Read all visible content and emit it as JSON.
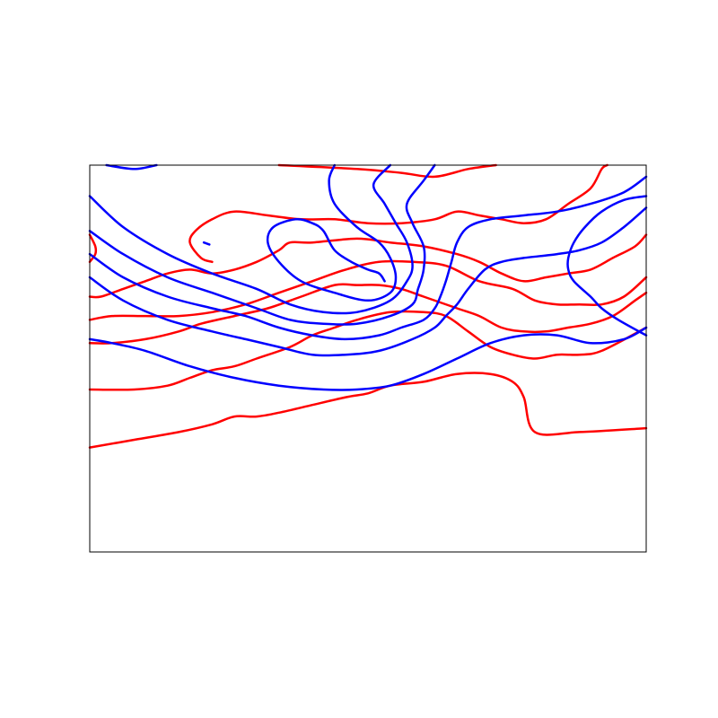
{
  "chart_data": {
    "type": "line",
    "title": "",
    "xlabel": "",
    "ylabel": "",
    "xlim": [
      0,
      100
    ],
    "ylim": [
      0,
      100
    ],
    "grid": false,
    "legend": "none",
    "series": [
      {
        "color": "#ff0000",
        "points": [
          [
            0,
            27
          ],
          [
            8,
            29
          ],
          [
            16,
            31
          ],
          [
            22,
            33
          ],
          [
            26,
            35
          ],
          [
            30,
            35
          ],
          [
            34,
            36
          ],
          [
            40,
            38
          ],
          [
            46,
            40
          ],
          [
            50,
            41
          ],
          [
            54,
            43
          ],
          [
            60,
            44
          ],
          [
            66,
            46
          ],
          [
            72,
            46
          ],
          [
            76,
            44
          ],
          [
            78,
            40
          ],
          [
            80,
            31
          ],
          [
            88,
            31
          ],
          [
            100,
            32
          ]
        ]
      },
      {
        "color": "#ff0000",
        "points": [
          [
            0,
            42
          ],
          [
            8,
            42
          ],
          [
            14,
            43
          ],
          [
            18,
            45
          ],
          [
            22,
            47
          ],
          [
            26,
            48
          ],
          [
            30,
            50
          ],
          [
            36,
            53
          ],
          [
            40,
            56
          ],
          [
            44,
            58
          ],
          [
            48,
            60
          ],
          [
            54,
            62
          ],
          [
            60,
            62
          ],
          [
            64,
            61
          ],
          [
            68,
            57
          ],
          [
            72,
            53
          ],
          [
            76,
            51
          ],
          [
            80,
            50
          ],
          [
            84,
            51
          ],
          [
            88,
            51
          ],
          [
            92,
            52
          ],
          [
            100,
            58
          ]
        ]
      },
      {
        "color": "#ff0000",
        "points": [
          [
            0,
            54
          ],
          [
            4,
            54
          ],
          [
            10,
            55
          ],
          [
            16,
            57
          ],
          [
            20,
            59
          ],
          [
            26,
            61
          ],
          [
            32,
            63
          ],
          [
            38,
            66
          ],
          [
            44,
            69
          ],
          [
            48,
            69
          ],
          [
            52,
            69
          ],
          [
            56,
            68
          ],
          [
            60,
            66
          ],
          [
            66,
            63
          ],
          [
            70,
            61
          ],
          [
            74,
            58
          ],
          [
            78,
            57
          ],
          [
            82,
            57
          ],
          [
            86,
            58
          ],
          [
            90,
            59
          ],
          [
            94,
            61
          ],
          [
            98,
            65
          ],
          [
            100,
            67
          ]
        ]
      },
      {
        "color": "#ff0000",
        "points": [
          [
            0,
            60
          ],
          [
            4,
            61
          ],
          [
            10,
            61
          ],
          [
            16,
            61
          ],
          [
            22,
            62
          ],
          [
            28,
            64
          ],
          [
            34,
            67
          ],
          [
            40,
            70
          ],
          [
            46,
            73
          ],
          [
            52,
            75
          ],
          [
            58,
            75
          ],
          [
            64,
            74
          ],
          [
            70,
            70
          ],
          [
            76,
            68
          ],
          [
            80,
            65
          ],
          [
            84,
            64
          ],
          [
            88,
            64
          ],
          [
            92,
            64
          ],
          [
            96,
            66
          ],
          [
            100,
            71
          ]
        ]
      },
      {
        "color": "#ff0000",
        "points": [
          [
            0,
            66
          ],
          [
            2,
            66
          ],
          [
            6,
            68
          ],
          [
            10,
            70
          ],
          [
            14,
            72
          ],
          [
            18,
            73
          ],
          [
            22,
            72
          ],
          [
            26,
            73
          ],
          [
            30,
            75
          ],
          [
            34,
            78
          ],
          [
            36,
            80
          ],
          [
            40,
            80
          ],
          [
            48,
            81
          ],
          [
            54,
            80
          ],
          [
            60,
            79
          ],
          [
            66,
            77
          ],
          [
            70,
            75
          ],
          [
            74,
            72
          ],
          [
            78,
            70
          ],
          [
            82,
            71
          ],
          [
            86,
            72
          ],
          [
            90,
            73
          ],
          [
            94,
            76
          ],
          [
            98,
            79
          ],
          [
            100,
            82
          ]
        ]
      },
      {
        "color": "#ff0000",
        "points": [
          [
            0,
            75
          ],
          [
            1,
            77
          ],
          [
            1,
            79
          ],
          [
            0,
            82
          ]
        ]
      },
      {
        "color": "#ff0000",
        "points": [
          [
            22,
            75
          ],
          [
            20,
            76
          ],
          [
            18,
            80
          ],
          [
            19,
            83
          ],
          [
            22,
            86
          ],
          [
            26,
            88
          ],
          [
            32,
            87
          ],
          [
            38,
            86
          ],
          [
            44,
            86
          ],
          [
            50,
            85
          ],
          [
            56,
            85
          ],
          [
            62,
            86
          ],
          [
            66,
            88
          ],
          [
            70,
            87
          ],
          [
            74,
            86
          ],
          [
            78,
            85
          ],
          [
            82,
            86
          ],
          [
            86,
            90
          ],
          [
            90,
            94
          ],
          [
            92,
            99
          ],
          [
            93,
            100
          ]
        ]
      },
      {
        "color": "#ff0000",
        "points": [
          [
            34,
            100
          ],
          [
            48,
            99
          ],
          [
            56,
            98
          ],
          [
            62,
            97
          ],
          [
            68,
            99
          ],
          [
            73,
            100
          ]
        ]
      },
      {
        "color": "#0000ff",
        "points": [
          [
            0,
            55
          ],
          [
            4,
            54
          ],
          [
            10,
            52
          ],
          [
            18,
            48
          ],
          [
            26,
            45
          ],
          [
            34,
            43
          ],
          [
            42,
            42
          ],
          [
            48,
            42
          ],
          [
            54,
            43
          ],
          [
            60,
            46
          ],
          [
            66,
            50
          ],
          [
            72,
            54
          ],
          [
            78,
            56
          ],
          [
            84,
            56
          ],
          [
            90,
            54
          ],
          [
            96,
            55
          ],
          [
            100,
            58
          ]
        ]
      },
      {
        "color": "#0000ff",
        "points": [
          [
            0,
            71
          ],
          [
            6,
            65
          ],
          [
            14,
            60
          ],
          [
            22,
            57
          ],
          [
            28,
            55
          ],
          [
            34,
            53
          ],
          [
            40,
            51
          ],
          [
            46,
            51
          ],
          [
            52,
            52
          ],
          [
            58,
            55
          ],
          [
            62,
            58
          ],
          [
            64,
            61
          ],
          [
            66,
            64
          ],
          [
            68,
            68
          ],
          [
            71,
            73
          ],
          [
            74,
            75
          ],
          [
            78,
            76
          ],
          [
            84,
            77
          ],
          [
            88,
            78
          ],
          [
            92,
            80
          ],
          [
            96,
            84
          ],
          [
            100,
            89
          ]
        ]
      },
      {
        "color": "#0000ff",
        "points": [
          [
            0,
            77
          ],
          [
            6,
            71
          ],
          [
            14,
            66
          ],
          [
            22,
            63
          ],
          [
            28,
            61
          ],
          [
            34,
            58
          ],
          [
            40,
            56
          ],
          [
            46,
            55
          ],
          [
            52,
            56
          ],
          [
            56,
            58
          ],
          [
            60,
            60
          ],
          [
            62,
            63
          ],
          [
            63,
            66
          ],
          [
            64,
            70
          ],
          [
            65,
            75
          ],
          [
            66,
            80
          ],
          [
            68,
            84
          ],
          [
            72,
            86
          ],
          [
            78,
            87
          ],
          [
            84,
            88
          ],
          [
            90,
            90
          ],
          [
            96,
            93
          ],
          [
            100,
            97
          ]
        ]
      },
      {
        "color": "#0000ff",
        "points": [
          [
            0,
            83
          ],
          [
            6,
            77
          ],
          [
            14,
            71
          ],
          [
            22,
            67
          ],
          [
            30,
            63
          ],
          [
            36,
            60
          ],
          [
            42,
            59
          ],
          [
            48,
            59
          ],
          [
            54,
            61
          ],
          [
            58,
            64
          ],
          [
            59,
            68
          ],
          [
            60,
            73
          ],
          [
            60,
            79
          ],
          [
            58,
            85
          ],
          [
            57,
            90
          ],
          [
            60,
            96
          ],
          [
            62,
            100
          ]
        ]
      },
      {
        "color": "#0000ff",
        "points": [
          [
            0,
            92
          ],
          [
            6,
            84
          ],
          [
            14,
            77
          ],
          [
            22,
            72
          ],
          [
            30,
            68
          ],
          [
            36,
            64
          ],
          [
            42,
            62
          ],
          [
            48,
            62
          ],
          [
            54,
            65
          ],
          [
            57,
            70
          ],
          [
            58,
            74
          ],
          [
            57,
            80
          ],
          [
            55,
            85
          ],
          [
            53,
            90
          ],
          [
            51,
            95
          ],
          [
            54,
            100
          ]
        ]
      },
      {
        "color": "#0000ff",
        "points": [
          [
            3,
            100
          ],
          [
            8,
            99
          ],
          [
            12,
            100
          ]
        ]
      },
      {
        "color": "#0000ff",
        "points": [
          [
            44,
            100
          ],
          [
            43,
            96
          ],
          [
            44,
            90
          ],
          [
            48,
            84
          ],
          [
            52,
            80
          ],
          [
            54,
            76
          ],
          [
            55,
            71
          ],
          [
            54,
            67
          ],
          [
            50,
            65
          ],
          [
            44,
            67
          ],
          [
            38,
            70
          ],
          [
            34,
            75
          ],
          [
            32,
            80
          ],
          [
            33,
            84
          ],
          [
            37,
            86
          ],
          [
            40,
            85
          ],
          [
            42,
            83
          ],
          [
            44,
            78
          ],
          [
            47,
            75
          ],
          [
            50,
            73
          ],
          [
            52,
            72
          ],
          [
            53,
            70
          ]
        ]
      },
      {
        "color": "#0000ff",
        "points": [
          [
            100,
            92
          ],
          [
            96,
            91
          ],
          [
            92,
            88
          ],
          [
            89,
            84
          ],
          [
            87,
            80
          ],
          [
            86,
            76
          ],
          [
            86,
            73
          ],
          [
            87,
            70
          ],
          [
            90,
            66
          ],
          [
            92,
            63
          ],
          [
            95,
            60
          ],
          [
            100,
            56
          ]
        ]
      },
      {
        "color": "#0000ff",
        "points": [
          [
            20.5,
            80
          ],
          [
            21.5,
            79.5
          ]
        ]
      }
    ]
  }
}
